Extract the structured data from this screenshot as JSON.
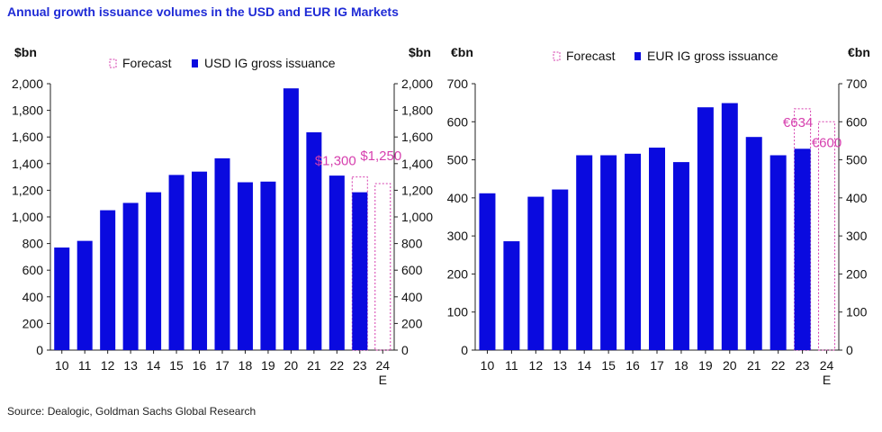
{
  "title": "Annual growth issuance volumes in the USD and EUR IG Markets",
  "source": "Source: Dealogic, Goldman Sachs Global Research",
  "colors": {
    "bar": "#0a0adf",
    "forecast": "#d63fae",
    "title": "#1f2bd6"
  },
  "chart_data": [
    {
      "type": "bar",
      "ylabel_left": "$bn",
      "ylabel_right": "$bn",
      "ylim": [
        0,
        2000
      ],
      "yticks": [
        "0",
        "200",
        "400",
        "600",
        "800",
        "1,000",
        "1,200",
        "1,400",
        "1,600",
        "1,800",
        "2,000"
      ],
      "categories": [
        "10",
        "11",
        "12",
        "13",
        "14",
        "15",
        "16",
        "17",
        "18",
        "19",
        "20",
        "21",
        "22",
        "23",
        "24"
      ],
      "category_sublabels": [
        "",
        "",
        "",
        "",
        "",
        "",
        "",
        "",
        "",
        "",
        "",
        "",
        "",
        "",
        "E"
      ],
      "legend": {
        "forecast": "Forecast",
        "actual": "USD IG gross issuance"
      },
      "series": [
        {
          "name": "USD IG gross issuance",
          "values": [
            770,
            820,
            1050,
            1105,
            1185,
            1315,
            1340,
            1440,
            1260,
            1265,
            1965,
            1635,
            1310,
            1185,
            null
          ]
        },
        {
          "name": "Forecast",
          "values": [
            null,
            null,
            null,
            null,
            null,
            null,
            null,
            null,
            null,
            null,
            null,
            null,
            null,
            1300,
            1250
          ]
        }
      ],
      "annotations": [
        {
          "category": "23",
          "value": 1300,
          "text": "$1,300"
        },
        {
          "category": "24",
          "value": 1250,
          "text": "$1,250"
        }
      ]
    },
    {
      "type": "bar",
      "ylabel_left": "€bn",
      "ylabel_right": "€bn",
      "ylim": [
        0,
        700
      ],
      "yticks": [
        "0",
        "100",
        "200",
        "300",
        "400",
        "500",
        "600",
        "700"
      ],
      "categories": [
        "10",
        "11",
        "12",
        "13",
        "14",
        "15",
        "16",
        "17",
        "18",
        "19",
        "20",
        "21",
        "22",
        "23",
        "24"
      ],
      "category_sublabels": [
        "",
        "",
        "",
        "",
        "",
        "",
        "",
        "",
        "",
        "",
        "",
        "",
        "",
        "",
        "E"
      ],
      "legend": {
        "forecast": "Forecast",
        "actual": "EUR IG gross issuance"
      },
      "series": [
        {
          "name": "EUR IG gross issuance",
          "values": [
            412,
            286,
            403,
            422,
            512,
            512,
            516,
            532,
            494,
            638,
            649,
            560,
            512,
            529,
            null
          ]
        },
        {
          "name": "Forecast",
          "values": [
            null,
            null,
            null,
            null,
            null,
            null,
            null,
            null,
            null,
            null,
            null,
            null,
            null,
            634,
            600
          ]
        }
      ],
      "annotations": [
        {
          "category": "23",
          "value": 634,
          "text": "€634"
        },
        {
          "category": "24",
          "value": 600,
          "text": "€600"
        }
      ]
    }
  ]
}
